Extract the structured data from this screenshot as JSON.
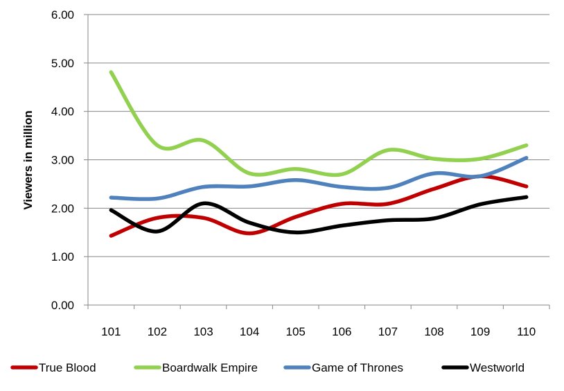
{
  "chart_data": {
    "type": "line",
    "smooth": true,
    "title": "",
    "xlabel": "",
    "ylabel": "Viewers in million",
    "categories": [
      "101",
      "102",
      "103",
      "104",
      "105",
      "106",
      "107",
      "108",
      "109",
      "110"
    ],
    "ylim": [
      0,
      6
    ],
    "yticks": [
      "0.00",
      "1.00",
      "2.00",
      "3.00",
      "4.00",
      "5.00",
      "6.00"
    ],
    "grid": "horizontal",
    "legend_position": "bottom",
    "series": [
      {
        "name": "True Blood",
        "color": "#c00000",
        "values": [
          1.43,
          1.8,
          1.8,
          1.48,
          1.82,
          2.09,
          2.09,
          2.4,
          2.66,
          2.45
        ]
      },
      {
        "name": "Boardwalk Empire",
        "color": "#92d050",
        "values": [
          4.81,
          3.3,
          3.4,
          2.72,
          2.81,
          2.7,
          3.2,
          3.02,
          3.02,
          3.3
        ]
      },
      {
        "name": "Game of Thrones",
        "color": "#4f81bd",
        "values": [
          2.22,
          2.2,
          2.44,
          2.45,
          2.58,
          2.44,
          2.42,
          2.72,
          2.66,
          3.04
        ]
      },
      {
        "name": "Westworld",
        "color": "#000000",
        "values": [
          1.96,
          1.52,
          2.1,
          1.7,
          1.5,
          1.64,
          1.75,
          1.79,
          2.08,
          2.23
        ]
      }
    ]
  }
}
